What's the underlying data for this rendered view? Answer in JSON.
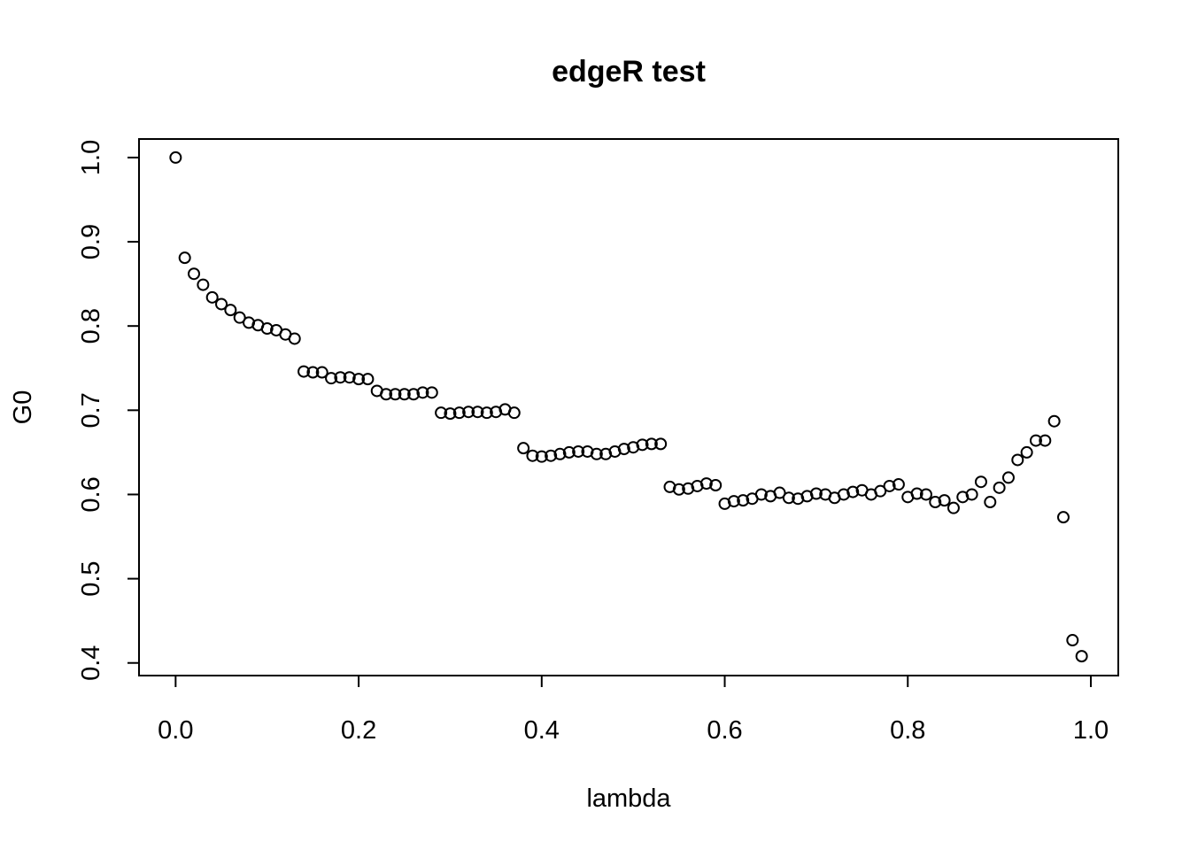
{
  "chart_data": {
    "type": "scatter",
    "title": "edgeR test",
    "xlabel": "lambda",
    "ylabel": "G0",
    "xlim": [
      -0.04,
      1.03
    ],
    "ylim": [
      0.385,
      1.022
    ],
    "grid": false,
    "xticks": [
      0,
      0.2,
      0.4,
      0.6,
      0.8,
      1.0
    ],
    "xtick_labels": [
      "0.0",
      "0.2",
      "0.4",
      "0.6",
      "0.8",
      "1.0"
    ],
    "yticks": [
      0.4,
      0.5,
      0.6,
      0.7,
      0.8,
      0.9,
      1.0
    ],
    "ytick_labels": [
      "0.4",
      "0.5",
      "0.6",
      "0.7",
      "0.8",
      "0.9",
      "1.0"
    ],
    "x": [
      0.0,
      0.01,
      0.02,
      0.03,
      0.04,
      0.05,
      0.06,
      0.07,
      0.08,
      0.09,
      0.1,
      0.11,
      0.12,
      0.13,
      0.14,
      0.15,
      0.16,
      0.17,
      0.18,
      0.19,
      0.2,
      0.21,
      0.22,
      0.23,
      0.24,
      0.25,
      0.26,
      0.27,
      0.28,
      0.29,
      0.3,
      0.31,
      0.32,
      0.33,
      0.34,
      0.35,
      0.36,
      0.37,
      0.38,
      0.39,
      0.4,
      0.41,
      0.42,
      0.43,
      0.44,
      0.45,
      0.46,
      0.47,
      0.48,
      0.49,
      0.5,
      0.51,
      0.52,
      0.53,
      0.54,
      0.55,
      0.56,
      0.57,
      0.58,
      0.59,
      0.6,
      0.61,
      0.62,
      0.63,
      0.64,
      0.65,
      0.66,
      0.67,
      0.68,
      0.69,
      0.7,
      0.71,
      0.72,
      0.73,
      0.74,
      0.75,
      0.76,
      0.77,
      0.78,
      0.79,
      0.8,
      0.81,
      0.82,
      0.83,
      0.84,
      0.85,
      0.86,
      0.87,
      0.88,
      0.89,
      0.9,
      0.91,
      0.92,
      0.93,
      0.94,
      0.95,
      0.96,
      0.97,
      0.98,
      0.99
    ],
    "y": [
      1.0,
      0.881,
      0.862,
      0.849,
      0.834,
      0.826,
      0.819,
      0.81,
      0.804,
      0.801,
      0.797,
      0.795,
      0.79,
      0.785,
      0.746,
      0.745,
      0.745,
      0.738,
      0.739,
      0.739,
      0.737,
      0.737,
      0.723,
      0.719,
      0.719,
      0.719,
      0.719,
      0.721,
      0.721,
      0.697,
      0.696,
      0.697,
      0.698,
      0.698,
      0.697,
      0.698,
      0.701,
      0.697,
      0.655,
      0.646,
      0.645,
      0.646,
      0.648,
      0.65,
      0.651,
      0.651,
      0.648,
      0.648,
      0.651,
      0.654,
      0.656,
      0.659,
      0.66,
      0.66,
      0.609,
      0.606,
      0.607,
      0.61,
      0.613,
      0.611,
      0.589,
      0.592,
      0.593,
      0.595,
      0.6,
      0.598,
      0.602,
      0.596,
      0.595,
      0.598,
      0.601,
      0.6,
      0.596,
      0.6,
      0.603,
      0.605,
      0.6,
      0.604,
      0.61,
      0.612,
      0.597,
      0.601,
      0.6,
      0.591,
      0.593,
      0.584,
      0.597,
      0.6,
      0.615,
      0.591,
      0.608,
      0.62,
      0.641,
      0.65,
      0.664,
      0.664,
      0.687,
      0.573,
      0.427,
      0.408
    ]
  }
}
